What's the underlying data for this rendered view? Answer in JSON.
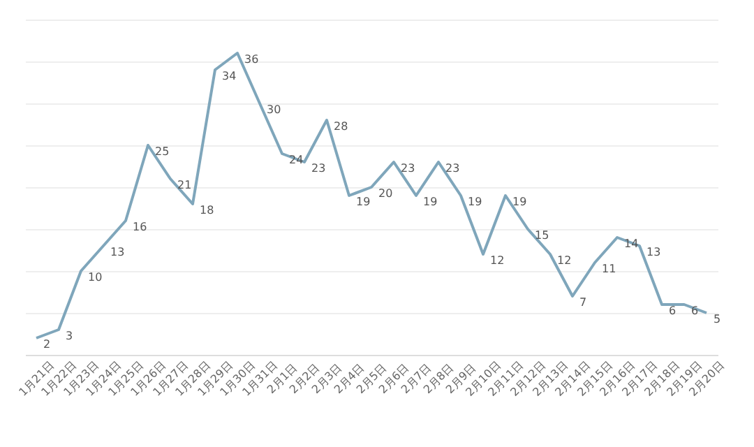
{
  "chart_data": {
    "type": "line",
    "categories": [
      "1月21日",
      "1月22日",
      "1月23日",
      "1月24日",
      "1月25日",
      "1月26日",
      "1月27日",
      "1月28日",
      "1月29日",
      "1月30日",
      "1月31日",
      "2月1日",
      "2月2日",
      "2月3日",
      "2月4日",
      "2月5日",
      "2月6日",
      "2月7日",
      "2月8日",
      "2月9日",
      "2月10日",
      "2月11日",
      "2月12日",
      "2月13日",
      "2月14日",
      "2月15日",
      "2月16日",
      "2月17日",
      "2月18日",
      "2月19日",
      "2月20日"
    ],
    "series": [
      {
        "color": "#7fa6bb",
        "values": [
          2,
          3,
          10,
          13,
          16,
          25,
          21,
          18,
          34,
          36,
          30,
          24,
          23,
          28,
          19,
          20,
          23,
          19,
          23,
          19,
          12,
          19,
          15,
          12,
          7,
          11,
          14,
          13,
          6,
          6,
          5
        ]
      }
    ],
    "ylim": [
      0,
      40
    ],
    "grid": "y",
    "tick_labels": "x",
    "data_labels": true,
    "marker": "none",
    "line_style": "solid"
  }
}
